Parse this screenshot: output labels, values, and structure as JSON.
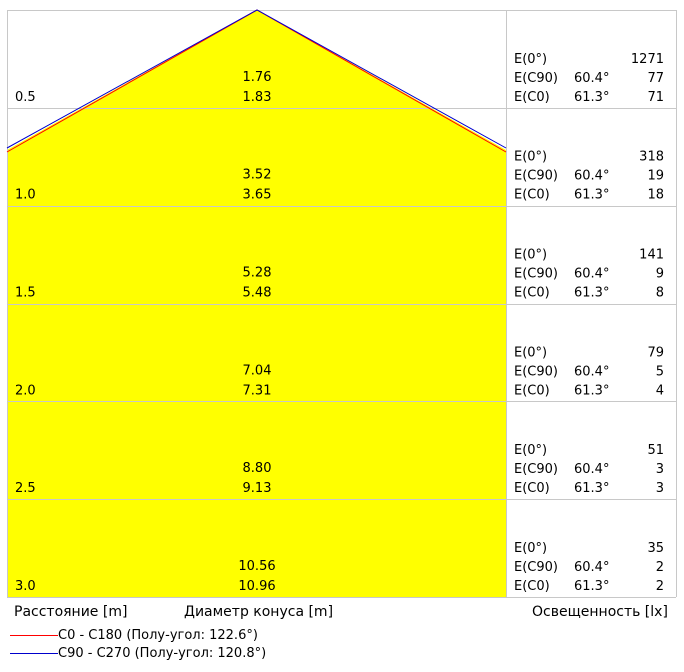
{
  "chart_data": {
    "type": "cone_diagram",
    "distance_unit_label": "Расстояние [m]",
    "diameter_label": "Диаметр конуса [m]",
    "illuminance_label": "Освещенность [lx]",
    "rows": [
      {
        "distance": "0.5",
        "d_c90": "1.76",
        "d_c0": "1.83",
        "e0": "1271",
        "e_c90": "77",
        "e_c0": "71"
      },
      {
        "distance": "1.0",
        "d_c90": "3.52",
        "d_c0": "3.65",
        "e0": "318",
        "e_c90": "19",
        "e_c0": "18"
      },
      {
        "distance": "1.5",
        "d_c90": "5.28",
        "d_c0": "5.48",
        "e0": "141",
        "e_c90": "9",
        "e_c0": "8"
      },
      {
        "distance": "2.0",
        "d_c90": "7.04",
        "d_c0": "7.31",
        "e0": "79",
        "e_c90": "5",
        "e_c0": "4"
      },
      {
        "distance": "2.5",
        "d_c90": "8.80",
        "d_c0": "9.13",
        "e0": "51",
        "e_c90": "3",
        "e_c0": "3"
      },
      {
        "distance": "3.0",
        "d_c90": "10.56",
        "d_c0": "10.96",
        "e0": "35",
        "e_c90": "2",
        "e_c0": "2"
      }
    ],
    "row_labels": {
      "e0": "E(0°)",
      "e_c90": "E(C90)",
      "e_c0": "E(C0)",
      "angle_c90": "60.4°",
      "angle_c0": "61.3°"
    },
    "series": [
      {
        "name": "C0 - C180 (Полу-угол: 122.6°)",
        "color": "#ff0000",
        "half_angle_deg": 61.3
      },
      {
        "name": "C90 - C270 (Полу-угол: 120.8°)",
        "color": "#0000cc",
        "half_angle_deg": 60.4
      }
    ],
    "fill_color": "#ffff00",
    "grid_color": "#c8c8c8"
  }
}
